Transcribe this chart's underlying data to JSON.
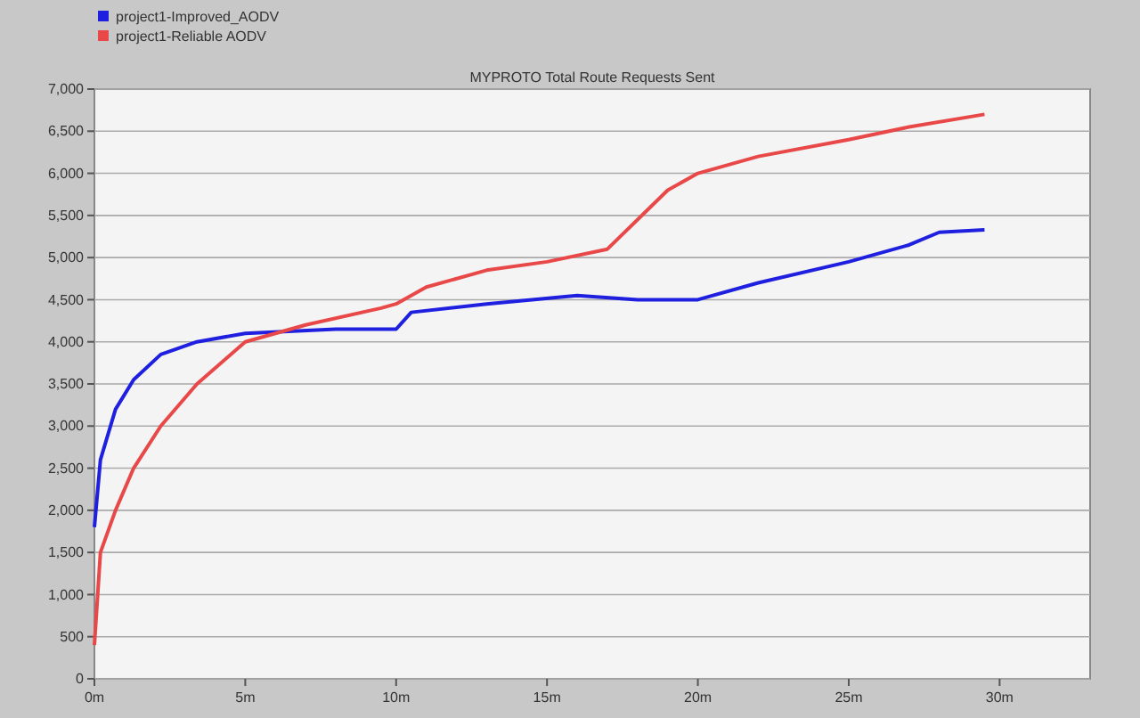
{
  "chart_data": {
    "type": "line",
    "title": "MYPROTO Total Route Requests Sent",
    "xlim": [
      0,
      33
    ],
    "xticks": [
      {
        "value": 0,
        "label": "0m"
      },
      {
        "value": 5,
        "label": "5m"
      },
      {
        "value": 10,
        "label": "10m"
      },
      {
        "value": 15,
        "label": "15m"
      },
      {
        "value": 20,
        "label": "20m"
      },
      {
        "value": 25,
        "label": "25m"
      },
      {
        "value": 30,
        "label": "30m"
      }
    ],
    "ylim": [
      0,
      7000
    ],
    "yticks": [
      0,
      500,
      {
        "value": 1000,
        "label": "1,000"
      },
      {
        "value": 1500,
        "label": "1,500"
      },
      {
        "value": 2000,
        "label": "2,000"
      },
      {
        "value": 2500,
        "label": "2,500"
      },
      {
        "value": 3000,
        "label": "3,000"
      },
      {
        "value": 3500,
        "label": "3,500"
      },
      {
        "value": 4000,
        "label": "4,000"
      },
      {
        "value": 4500,
        "label": "4,500"
      },
      {
        "value": 5000,
        "label": "5,000"
      },
      {
        "value": 5500,
        "label": "5,500"
      },
      {
        "value": 6000,
        "label": "6,000"
      },
      {
        "value": 6500,
        "label": "6,500"
      },
      {
        "value": 7000,
        "label": "7,000"
      }
    ],
    "grid": "y",
    "legend": "top left",
    "series": [
      {
        "name": "project1-Improved_AODV",
        "color": "#1f1fe0",
        "x": [
          0,
          0.2,
          0.7,
          1.3,
          2.2,
          3.4,
          5,
          8,
          9.5,
          10,
          10.5,
          13,
          16,
          18,
          20,
          22,
          25,
          27,
          28,
          29.5
        ],
        "values": [
          1800,
          2600,
          3200,
          3550,
          3850,
          4000,
          4100,
          4150,
          4150,
          4150,
          4350,
          4450,
          4550,
          4500,
          4500,
          4700,
          4950,
          5150,
          5300,
          5330
        ]
      },
      {
        "name": "project1-Reliable AODV",
        "color": "#e84848",
        "x": [
          0,
          0.2,
          0.7,
          1.3,
          2.2,
          3.4,
          5,
          7,
          9.5,
          10,
          11,
          13,
          15,
          17,
          19,
          20,
          22,
          25,
          27,
          29.5
        ],
        "values": [
          400,
          1500,
          2000,
          2500,
          3000,
          3500,
          4000,
          4200,
          4400,
          4450,
          4650,
          4850,
          4950,
          5100,
          5800,
          6000,
          6200,
          6400,
          6550,
          6700
        ]
      }
    ]
  }
}
